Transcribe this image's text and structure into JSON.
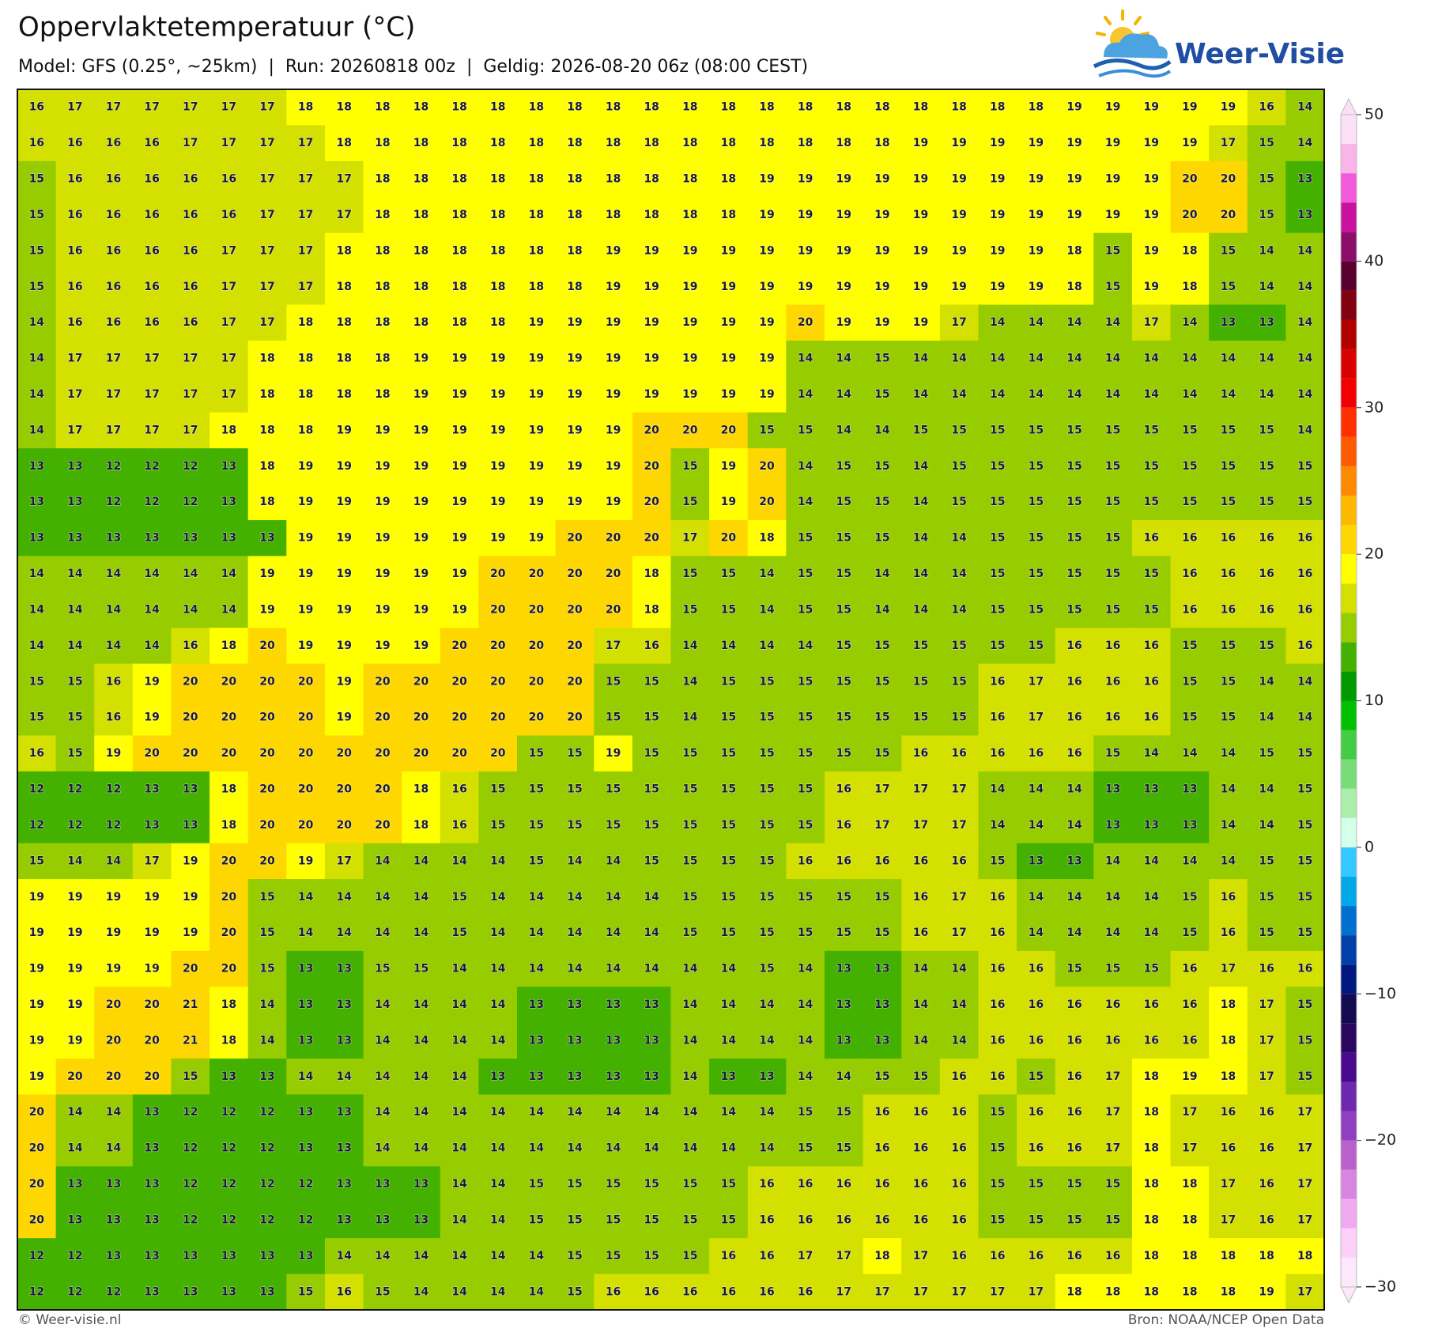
{
  "chart_data": {
    "type": "heatmap",
    "title": "Oppervlaktetemperatuur (°C)",
    "subtitle": "Model: GFS (0.25°, ~25km)  |  Run: 20260818 00z  |  Geldig: 2026-08-20 06z (08:00 CEST)",
    "brand": "Weer-Visie",
    "credit": "© Weer-visie.nl",
    "source": "Bron: NOAA/NCEP Open Data",
    "values": [
      [
        16,
        17,
        17,
        17,
        17,
        17,
        17,
        18,
        18,
        18,
        18,
        18,
        18,
        18,
        18,
        18,
        18,
        18,
        18,
        18,
        18,
        18,
        18,
        18,
        18,
        18,
        18,
        19,
        19,
        19,
        19,
        19,
        16,
        14
      ],
      [
        16,
        16,
        16,
        16,
        17,
        17,
        17,
        17,
        18,
        18,
        18,
        18,
        18,
        18,
        18,
        18,
        18,
        18,
        18,
        18,
        18,
        18,
        18,
        19,
        19,
        19,
        19,
        19,
        19,
        19,
        19,
        17,
        15,
        14
      ],
      [
        15,
        16,
        16,
        16,
        16,
        16,
        17,
        17,
        17,
        18,
        18,
        18,
        18,
        18,
        18,
        18,
        18,
        18,
        18,
        19,
        19,
        19,
        19,
        19,
        19,
        19,
        19,
        19,
        19,
        19,
        20,
        20,
        15,
        13
      ],
      [
        15,
        16,
        16,
        16,
        16,
        16,
        17,
        17,
        17,
        18,
        18,
        18,
        18,
        18,
        18,
        18,
        18,
        18,
        18,
        19,
        19,
        19,
        19,
        19,
        19,
        19,
        19,
        19,
        19,
        19,
        20,
        20,
        15,
        13
      ],
      [
        15,
        16,
        16,
        16,
        16,
        17,
        17,
        17,
        18,
        18,
        18,
        18,
        18,
        18,
        18,
        19,
        19,
        19,
        19,
        19,
        19,
        19,
        19,
        19,
        19,
        19,
        19,
        18,
        15,
        19,
        18,
        15,
        14,
        14
      ],
      [
        15,
        16,
        16,
        16,
        16,
        17,
        17,
        17,
        18,
        18,
        18,
        18,
        18,
        18,
        18,
        19,
        19,
        19,
        19,
        19,
        19,
        19,
        19,
        19,
        19,
        19,
        19,
        18,
        15,
        19,
        18,
        15,
        14,
        14
      ],
      [
        14,
        16,
        16,
        16,
        16,
        17,
        17,
        18,
        18,
        18,
        18,
        18,
        18,
        19,
        19,
        19,
        19,
        19,
        19,
        19,
        20,
        19,
        19,
        19,
        17,
        14,
        14,
        14,
        14,
        17,
        14,
        13,
        13,
        14
      ],
      [
        14,
        17,
        17,
        17,
        17,
        17,
        18,
        18,
        18,
        18,
        19,
        19,
        19,
        19,
        19,
        19,
        19,
        19,
        19,
        19,
        14,
        14,
        15,
        14,
        14,
        14,
        14,
        14,
        14,
        14,
        14,
        14,
        14,
        14
      ],
      [
        14,
        17,
        17,
        17,
        17,
        17,
        18,
        18,
        18,
        18,
        19,
        19,
        19,
        19,
        19,
        19,
        19,
        19,
        19,
        19,
        14,
        14,
        15,
        14,
        14,
        14,
        14,
        14,
        14,
        14,
        14,
        14,
        14,
        14
      ],
      [
        14,
        17,
        17,
        17,
        17,
        18,
        18,
        18,
        19,
        19,
        19,
        19,
        19,
        19,
        19,
        19,
        20,
        20,
        20,
        15,
        15,
        14,
        14,
        15,
        15,
        15,
        15,
        15,
        15,
        15,
        15,
        15,
        15,
        14
      ],
      [
        13,
        13,
        12,
        12,
        12,
        13,
        18,
        19,
        19,
        19,
        19,
        19,
        19,
        19,
        19,
        19,
        20,
        15,
        19,
        20,
        14,
        15,
        15,
        14,
        15,
        15,
        15,
        15,
        15,
        15,
        15,
        15,
        15,
        15
      ],
      [
        13,
        13,
        12,
        12,
        12,
        13,
        18,
        19,
        19,
        19,
        19,
        19,
        19,
        19,
        19,
        19,
        20,
        15,
        19,
        20,
        14,
        15,
        15,
        14,
        15,
        15,
        15,
        15,
        15,
        15,
        15,
        15,
        15,
        15
      ],
      [
        13,
        13,
        13,
        13,
        13,
        13,
        13,
        19,
        19,
        19,
        19,
        19,
        19,
        19,
        20,
        20,
        20,
        17,
        20,
        18,
        15,
        15,
        15,
        14,
        14,
        15,
        15,
        15,
        15,
        16,
        16,
        16,
        16,
        16
      ],
      [
        14,
        14,
        14,
        14,
        14,
        14,
        19,
        19,
        19,
        19,
        19,
        19,
        20,
        20,
        20,
        20,
        18,
        15,
        15,
        14,
        15,
        15,
        14,
        14,
        14,
        15,
        15,
        15,
        15,
        15,
        16,
        16,
        16,
        16
      ],
      [
        14,
        14,
        14,
        14,
        14,
        14,
        19,
        19,
        19,
        19,
        19,
        19,
        20,
        20,
        20,
        20,
        18,
        15,
        15,
        14,
        15,
        15,
        14,
        14,
        14,
        15,
        15,
        15,
        15,
        15,
        16,
        16,
        16,
        16
      ],
      [
        14,
        14,
        14,
        14,
        16,
        18,
        20,
        19,
        19,
        19,
        19,
        20,
        20,
        20,
        20,
        17,
        16,
        14,
        14,
        14,
        14,
        15,
        15,
        15,
        15,
        15,
        15,
        16,
        16,
        16,
        15,
        15,
        15,
        16
      ],
      [
        15,
        15,
        16,
        19,
        20,
        20,
        20,
        20,
        19,
        20,
        20,
        20,
        20,
        20,
        20,
        15,
        15,
        14,
        15,
        15,
        15,
        15,
        15,
        15,
        15,
        16,
        17,
        16,
        16,
        16,
        15,
        15,
        14,
        14
      ],
      [
        15,
        15,
        16,
        19,
        20,
        20,
        20,
        20,
        19,
        20,
        20,
        20,
        20,
        20,
        20,
        15,
        15,
        14,
        15,
        15,
        15,
        15,
        15,
        15,
        15,
        16,
        17,
        16,
        16,
        16,
        15,
        15,
        14,
        14
      ],
      [
        16,
        15,
        19,
        20,
        20,
        20,
        20,
        20,
        20,
        20,
        20,
        20,
        20,
        15,
        15,
        19,
        15,
        15,
        15,
        15,
        15,
        15,
        15,
        16,
        16,
        16,
        16,
        16,
        15,
        14,
        14,
        14,
        15,
        15
      ],
      [
        12,
        12,
        12,
        13,
        13,
        18,
        20,
        20,
        20,
        20,
        18,
        16,
        15,
        15,
        15,
        15,
        15,
        15,
        15,
        15,
        15,
        16,
        17,
        17,
        17,
        14,
        14,
        14,
        13,
        13,
        13,
        14,
        14,
        15
      ],
      [
        12,
        12,
        12,
        13,
        13,
        18,
        20,
        20,
        20,
        20,
        18,
        16,
        15,
        15,
        15,
        15,
        15,
        15,
        15,
        15,
        15,
        16,
        17,
        17,
        17,
        14,
        14,
        14,
        13,
        13,
        13,
        14,
        14,
        15
      ],
      [
        15,
        14,
        14,
        17,
        19,
        20,
        20,
        19,
        17,
        14,
        14,
        14,
        14,
        15,
        14,
        14,
        15,
        15,
        15,
        15,
        16,
        16,
        16,
        16,
        16,
        15,
        13,
        13,
        14,
        14,
        14,
        14,
        15,
        15
      ],
      [
        19,
        19,
        19,
        19,
        19,
        20,
        15,
        14,
        14,
        14,
        14,
        15,
        14,
        14,
        14,
        14,
        14,
        15,
        15,
        15,
        15,
        15,
        15,
        16,
        17,
        16,
        14,
        14,
        14,
        14,
        15,
        16,
        15,
        15
      ],
      [
        19,
        19,
        19,
        19,
        19,
        20,
        15,
        14,
        14,
        14,
        14,
        15,
        14,
        14,
        14,
        14,
        14,
        15,
        15,
        15,
        15,
        15,
        15,
        16,
        17,
        16,
        14,
        14,
        14,
        14,
        15,
        16,
        15,
        15
      ],
      [
        19,
        19,
        19,
        19,
        20,
        20,
        15,
        13,
        13,
        15,
        15,
        14,
        14,
        14,
        14,
        14,
        14,
        14,
        14,
        15,
        14,
        13,
        13,
        14,
        14,
        16,
        16,
        15,
        15,
        15,
        16,
        17,
        16,
        16
      ],
      [
        19,
        19,
        20,
        20,
        21,
        18,
        14,
        13,
        13,
        14,
        14,
        14,
        14,
        13,
        13,
        13,
        13,
        14,
        14,
        14,
        14,
        13,
        13,
        14,
        14,
        16,
        16,
        16,
        16,
        16,
        16,
        18,
        17,
        15
      ],
      [
        19,
        19,
        20,
        20,
        21,
        18,
        14,
        13,
        13,
        14,
        14,
        14,
        14,
        13,
        13,
        13,
        13,
        14,
        14,
        14,
        14,
        13,
        13,
        14,
        14,
        16,
        16,
        16,
        16,
        16,
        16,
        18,
        17,
        15
      ],
      [
        19,
        20,
        20,
        20,
        15,
        13,
        13,
        14,
        14,
        14,
        14,
        14,
        13,
        13,
        13,
        13,
        13,
        14,
        13,
        13,
        14,
        14,
        15,
        15,
        16,
        16,
        15,
        16,
        17,
        18,
        19,
        18,
        17,
        15
      ],
      [
        20,
        14,
        14,
        13,
        12,
        12,
        12,
        13,
        13,
        14,
        14,
        14,
        14,
        14,
        14,
        14,
        14,
        14,
        14,
        14,
        15,
        15,
        16,
        16,
        16,
        15,
        16,
        16,
        17,
        18,
        17,
        16,
        16,
        17
      ],
      [
        20,
        14,
        14,
        13,
        12,
        12,
        12,
        13,
        13,
        14,
        14,
        14,
        14,
        14,
        14,
        14,
        14,
        14,
        14,
        14,
        15,
        15,
        16,
        16,
        16,
        15,
        16,
        16,
        17,
        18,
        17,
        16,
        16,
        17
      ],
      [
        20,
        13,
        13,
        13,
        12,
        12,
        12,
        12,
        13,
        13,
        13,
        14,
        14,
        15,
        15,
        15,
        15,
        15,
        15,
        16,
        16,
        16,
        16,
        16,
        16,
        15,
        15,
        15,
        15,
        18,
        18,
        17,
        16,
        17
      ],
      [
        20,
        13,
        13,
        13,
        12,
        12,
        12,
        12,
        13,
        13,
        13,
        14,
        14,
        15,
        15,
        15,
        15,
        15,
        15,
        16,
        16,
        16,
        16,
        16,
        16,
        15,
        15,
        15,
        15,
        18,
        18,
        17,
        16,
        17
      ],
      [
        12,
        12,
        13,
        13,
        13,
        13,
        13,
        13,
        14,
        14,
        14,
        14,
        14,
        14,
        15,
        15,
        15,
        15,
        16,
        16,
        17,
        17,
        18,
        17,
        16,
        16,
        16,
        16,
        16,
        18,
        18,
        18,
        18,
        18
      ],
      [
        12,
        12,
        12,
        13,
        13,
        13,
        13,
        15,
        16,
        15,
        14,
        14,
        14,
        14,
        15,
        16,
        16,
        16,
        16,
        16,
        16,
        17,
        17,
        17,
        17,
        17,
        17,
        18,
        18,
        18,
        18,
        18,
        19,
        17
      ]
    ],
    "colorbar_levels": [
      -30,
      -28,
      -26,
      -24,
      -22,
      -20,
      -18,
      -16,
      -14,
      -12,
      -10,
      -8,
      -6,
      -4,
      -2,
      0,
      2,
      4,
      6,
      8,
      10,
      12,
      14,
      16,
      18,
      20,
      22,
      24,
      26,
      28,
      30,
      32,
      34,
      36,
      38,
      40,
      42,
      44,
      46,
      48,
      50
    ],
    "colorbar_colors": [
      "#fde8fb",
      "#fcd0f8",
      "#f0aaf0",
      "#d884e0",
      "#b860cc",
      "#9040c0",
      "#6e28b0",
      "#4a0a90",
      "#2a0860",
      "#140a50",
      "#001880",
      "#0040a8",
      "#0070d0",
      "#00a8e8",
      "#33c8ff",
      "#d4ffe8",
      "#aaeeaa",
      "#77dd77",
      "#44cc44",
      "#00c000",
      "#009a00",
      "#44b000",
      "#96cc00",
      "#d4e000",
      "#ffff00",
      "#ffd700",
      "#ffb800",
      "#ff8a00",
      "#ff5a00",
      "#ff3000",
      "#f00000",
      "#d80000",
      "#b00000",
      "#820010",
      "#5a0030",
      "#8c0d6a",
      "#c9119f",
      "#f25ad9",
      "#f9b4e8",
      "#fce0f5"
    ],
    "colorbar_ticks": [
      {
        "value": -30,
        "label": "−30"
      },
      {
        "value": -20,
        "label": "−20"
      },
      {
        "value": -10,
        "label": "−10"
      },
      0,
      10,
      20,
      30,
      40,
      50
    ]
  }
}
